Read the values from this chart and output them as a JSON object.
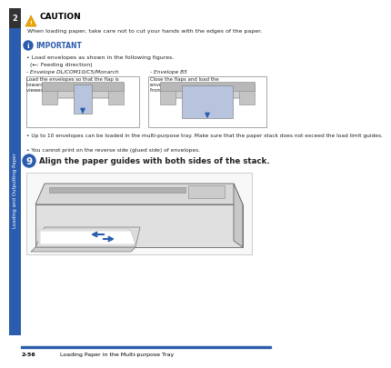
{
  "bg_color": "#ffffff",
  "sidebar_color": "#333333",
  "sidebar_blue": "#2b5cad",
  "sidebar_text": "Loading and Outputting Paper",
  "sidebar_num": "2",
  "footer_line_color": "#2b5cad",
  "footer_text_left": "2-56",
  "footer_text_right": "Loading Paper in the Multi-purpose Tray",
  "caution_title": "CAUTION",
  "caution_text": "When loading paper, take care not to cut your hands with the edges of the paper.",
  "important_title": "IMPORTANT",
  "bullet1": "Load envelopes as shown in the following figures.",
  "bullet1b": "(←: Feeding direction)",
  "env1_title": "Envelope DL/COM10/C5/Monarch",
  "env1_desc": "Load the envelopes so that the flap is\ntoward the left of the printer when\nviewed from the front.",
  "env2_title": "Envelope B5",
  "env2_desc": "Close the flaps and load the\nenvelopes so that they are printed\nfrom the top (the edge with the flap).",
  "bullet2": "Up to 10 envelopes can be loaded in the multi-purpose tray. Make sure that the paper stack does not exceed the load limit guides.",
  "bullet3": "You cannot print on the reverse side (glued side) of envelopes.",
  "step_num": "9",
  "step_text": "Align the paper guides with both sides of the stack.",
  "accent_color": "#2b5cad",
  "envelope_fill": "#b8c4de",
  "arrow_color": "#2b5cad",
  "warn_yellow": "#f0a500",
  "text_dark": "#222222",
  "gray_light": "#cccccc",
  "gray_med": "#aaaaaa",
  "gray_dark": "#888888"
}
